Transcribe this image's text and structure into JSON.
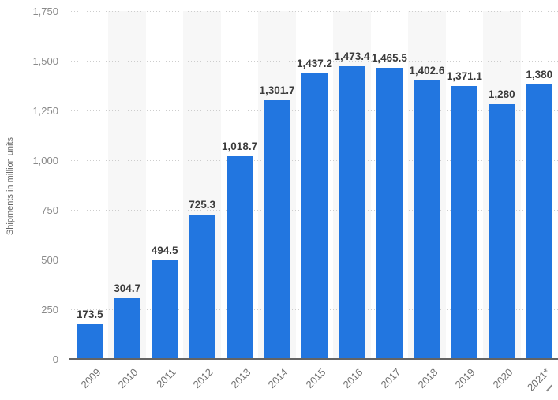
{
  "chart_data": {
    "type": "bar",
    "title": "",
    "xlabel": "",
    "ylabel": "Shipments in million units",
    "categories": [
      "2009",
      "2010",
      "2011",
      "2012",
      "2013",
      "2014",
      "2015",
      "2016",
      "2017",
      "2018",
      "2019",
      "2020",
      "2021*"
    ],
    "values": [
      173.5,
      304.7,
      494.5,
      725.3,
      1018.7,
      1301.7,
      1437.2,
      1473.4,
      1465.5,
      1402.6,
      1371.1,
      1280,
      1380
    ],
    "value_labels": [
      "173.5",
      "304.7",
      "494.5",
      "725.3",
      "1,018.7",
      "1,301.7",
      "1,437.2",
      "1,473.4",
      "1,465.5",
      "1,402.6",
      "1,371.1",
      "1,280",
      "1,380"
    ],
    "y_ticks": [
      0,
      250,
      500,
      750,
      1000,
      1250,
      1500,
      1750
    ],
    "y_tick_labels": [
      "0",
      "250",
      "500",
      "750",
      "1,000",
      "1,250",
      "1,500",
      "1,750"
    ],
    "ylim": [
      0,
      1750
    ],
    "grid": "horizontal-dotted",
    "legend": "none",
    "band_pattern": "light band behind every second year column starting 2010",
    "colors": {
      "bar": "#2276e0",
      "band": "#f7f7f7",
      "gridline": "#cdcdcd",
      "axis_line": "#646464",
      "value_label": "#3b3b3b",
      "tick_label": "#8a8a8a",
      "x_tick_label": "#6f6f6f",
      "axis_title": "#666666"
    }
  }
}
